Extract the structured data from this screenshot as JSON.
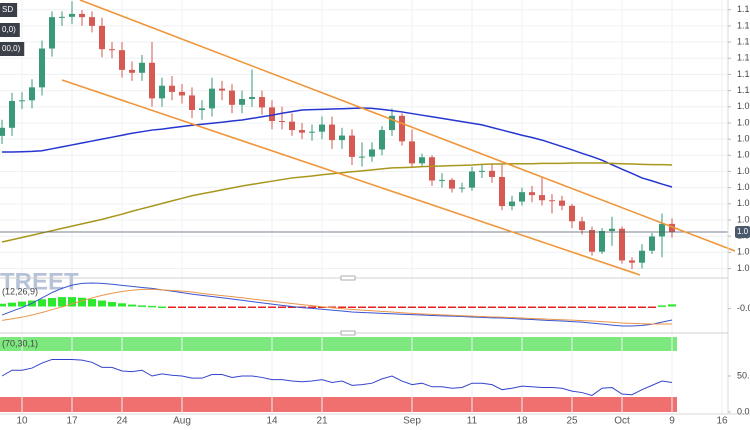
{
  "header": {
    "watermark": "TREET"
  },
  "chart_data": [
    {
      "type": "candlestick",
      "title": "SD",
      "categories": [
        null,
        null,
        "10",
        null,
        null,
        null,
        null,
        "17",
        null,
        null,
        null,
        null,
        "24",
        null,
        null,
        null,
        null,
        null,
        "Aug",
        null,
        null,
        null,
        null,
        null,
        null,
        null,
        null,
        "14",
        null,
        null,
        null,
        null,
        "21",
        null,
        null,
        null,
        null,
        null,
        null,
        null,
        null,
        "Sep",
        null,
        null,
        null,
        null,
        null,
        "11",
        null,
        null,
        null,
        null,
        "18",
        null,
        null,
        null,
        null,
        "25",
        null,
        null,
        null,
        null,
        "Oct",
        null,
        null,
        null,
        null,
        "9",
        null,
        null,
        null,
        null,
        "16"
      ],
      "open": [
        1.086,
        1.0885,
        1.0968,
        1.097,
        1.101,
        1.113,
        1.1227,
        1.1228,
        1.1237,
        1.1227,
        1.12,
        1.1128,
        1.1125,
        1.1064,
        1.1055,
        1.1086,
        1.0976,
        1.1015,
        1.0996,
        1.0985,
        1.094,
        1.0945,
        1.1006,
        1.1,
        1.0956,
        1.0974,
        1.098,
        1.0948,
        1.0906,
        1.0904,
        1.0878,
        1.087,
        1.0873,
        1.0895,
        1.0847,
        1.0861,
        1.0795,
        1.0796,
        1.0818,
        1.0878,
        1.0922,
        1.0843,
        1.0775,
        1.0794,
        1.0722,
        1.0724,
        1.0697,
        1.07,
        1.075,
        1.0752,
        1.0733,
        1.0643,
        1.0657,
        1.0686,
        1.0677,
        1.0661,
        1.066,
        1.0644,
        1.0596,
        1.0569,
        1.0502,
        1.0566,
        1.0573,
        1.0475,
        1.0468,
        1.0505,
        1.0549,
        1.0588,
        null,
        null,
        null,
        null,
        null
      ],
      "high": [
        1.091,
        1.0993,
        1.0995,
        1.1035,
        1.1155,
        1.1245,
        1.1245,
        1.1276,
        1.1249,
        1.1245,
        1.1225,
        1.115,
        1.115,
        1.109,
        1.111,
        1.115,
        1.104,
        1.1045,
        1.102,
        1.101,
        1.097,
        1.104,
        1.103,
        1.102,
        1.1,
        1.1065,
        1.1,
        1.097,
        1.095,
        1.093,
        1.09,
        1.0895,
        1.092,
        1.092,
        1.0885,
        1.088,
        1.084,
        1.084,
        1.089,
        1.0945,
        1.093,
        1.088,
        1.0805,
        1.08,
        1.0745,
        1.073,
        1.0715,
        1.0765,
        1.077,
        1.0775,
        1.077,
        1.0675,
        1.07,
        1.0705,
        1.0735,
        1.068,
        1.0675,
        1.065,
        1.061,
        1.058,
        1.0575,
        1.061,
        1.058,
        1.0485,
        1.0525,
        1.056,
        1.062,
        1.0605,
        null,
        null,
        null,
        null,
        null
      ],
      "low": [
        1.0835,
        1.086,
        1.0943,
        1.0945,
        1.0985,
        1.1105,
        1.12,
        1.1205,
        1.12,
        1.118,
        1.1103,
        1.11,
        1.104,
        1.103,
        1.103,
        1.095,
        1.095,
        1.097,
        1.096,
        1.0915,
        1.091,
        1.092,
        1.097,
        1.093,
        1.093,
        1.095,
        1.0925,
        1.088,
        1.088,
        1.086,
        1.085,
        1.0845,
        1.085,
        1.082,
        1.082,
        1.077,
        1.0765,
        1.078,
        1.08,
        1.086,
        1.083,
        1.0765,
        1.0765,
        1.0705,
        1.07,
        1.0685,
        1.0685,
        1.069,
        1.073,
        1.0715,
        1.063,
        1.063,
        1.0645,
        1.0655,
        1.0645,
        1.062,
        1.063,
        1.0575,
        1.0555,
        1.049,
        1.0495,
        1.052,
        1.0465,
        1.0448,
        1.045,
        1.0495,
        1.0485,
        1.0545,
        null,
        null,
        null,
        null,
        null
      ],
      "close": [
        1.0885,
        1.0968,
        1.097,
        1.101,
        1.113,
        1.1227,
        1.1228,
        1.1237,
        1.1227,
        1.12,
        1.1128,
        1.1125,
        1.1064,
        1.1055,
        1.1086,
        1.0976,
        1.1015,
        1.0996,
        1.0985,
        1.094,
        1.0945,
        1.1006,
        1.1,
        1.0956,
        1.0974,
        1.098,
        1.0948,
        1.0906,
        1.0904,
        1.0878,
        1.087,
        1.0873,
        1.0895,
        1.0847,
        1.0861,
        1.0795,
        1.0796,
        1.0818,
        1.0878,
        1.0922,
        1.0843,
        1.0775,
        1.0794,
        1.0722,
        1.0724,
        1.0697,
        1.07,
        1.075,
        1.0752,
        1.0733,
        1.0643,
        1.0657,
        1.0686,
        1.0677,
        1.0661,
        1.066,
        1.0644,
        1.0596,
        1.0569,
        1.0502,
        1.0566,
        1.0573,
        1.0475,
        1.0468,
        1.0505,
        1.0549,
        1.0588,
        1.0563,
        null,
        null,
        null,
        null,
        null
      ],
      "up_color": "#3a9a78",
      "down_color": "#d65a52",
      "series": [
        {
          "name": "0,0)",
          "color": "#2536d0",
          "values": [
            1.081,
            1.081,
            1.0811,
            1.0812,
            1.0814,
            1.082,
            1.0826,
            1.0832,
            1.0838,
            1.0844,
            1.085,
            1.0856,
            1.0862,
            1.0868,
            1.0873,
            1.0878,
            1.0881,
            1.0885,
            1.0889,
            1.0893,
            1.0896,
            1.0899,
            1.0902,
            1.0906,
            1.0909,
            1.0914,
            1.0919,
            1.0924,
            1.093,
            1.0935,
            1.094,
            1.0941,
            1.0942,
            1.0943,
            1.0944,
            1.0945,
            1.0946,
            1.0945,
            1.0942,
            1.0938,
            1.0934,
            1.0929,
            1.0924,
            1.0919,
            1.0914,
            1.0909,
            1.0904,
            1.0899,
            1.0894,
            1.0886,
            1.0878,
            1.087,
            1.0862,
            1.0855,
            1.0847,
            1.0837,
            1.0827,
            1.0817,
            1.0806,
            1.0796,
            1.0785,
            1.0771,
            1.0757,
            1.0744,
            1.073,
            1.0721,
            1.0711,
            1.0702,
            null,
            null,
            null,
            null,
            null
          ]
        },
        {
          "name": "00,0)",
          "color": "#a8971c",
          "values": [
            1.0532,
            1.0539,
            1.0546,
            1.0553,
            1.056,
            1.0567,
            1.0574,
            1.0581,
            1.0588,
            1.0595,
            1.0602,
            1.061,
            1.0618,
            1.0627,
            1.0635,
            1.0643,
            1.0651,
            1.0659,
            1.0667,
            1.0675,
            1.0681,
            1.0687,
            1.0693,
            1.0699,
            1.0705,
            1.071,
            1.0715,
            1.072,
            1.0725,
            1.073,
            1.0733,
            1.0736,
            1.074,
            1.0743,
            1.0746,
            1.0749,
            1.0752,
            1.0755,
            1.0758,
            1.0761,
            1.0762,
            1.0763,
            1.0765,
            1.0766,
            1.0767,
            1.0768,
            1.0769,
            1.077,
            1.0772,
            1.0773,
            1.0773,
            1.0774,
            1.0774,
            1.0774,
            1.0775,
            1.0775,
            1.0775,
            1.0776,
            1.0776,
            1.0776,
            1.0776,
            1.0775,
            1.0774,
            1.0773,
            1.0772,
            1.0771,
            1.0771,
            1.077,
            null,
            null,
            null,
            null,
            null
          ]
        }
      ],
      "ylim": [
        1.043,
        1.128
      ],
      "yticks": [
        {
          "value": 1.045,
          "label": "1.0"
        },
        {
          "value": 1.05,
          "label": "1.0"
        },
        {
          "value": 1.055,
          "label": "1.0"
        },
        {
          "value": 1.06,
          "label": "1.0"
        },
        {
          "value": 1.065,
          "label": "1.0"
        },
        {
          "value": 1.07,
          "label": "1.0"
        },
        {
          "value": 1.075,
          "label": "1.0"
        },
        {
          "value": 1.08,
          "label": "1.0"
        },
        {
          "value": 1.085,
          "label": "1.0"
        },
        {
          "value": 1.09,
          "label": "1.0"
        },
        {
          "value": 1.095,
          "label": "1.0"
        },
        {
          "value": 1.1,
          "label": "1.1"
        },
        {
          "value": 1.105,
          "label": "1.1"
        },
        {
          "value": 1.11,
          "label": "1.1"
        },
        {
          "value": 1.115,
          "label": "1.1"
        },
        {
          "value": 1.12,
          "label": "1.1"
        },
        {
          "value": 1.125,
          "label": "1.1"
        }
      ],
      "price_line": {
        "value": 1.0563,
        "label": "1.0"
      },
      "grid": true
    },
    {
      "type": "macd",
      "title": "(12,26,9)",
      "ylim": [
        -0.011,
        0.011
      ],
      "yticks": [
        {
          "value": -0.001,
          "label": "-0.0"
        }
      ],
      "up_color": "#2ee82e",
      "down_color": "#e82020",
      "histogram": [
        0.0013,
        0.0018,
        0.0023,
        0.0028,
        0.0034,
        0.004,
        0.0044,
        0.0044,
        0.0041,
        0.0035,
        0.0028,
        0.0021,
        0.0015,
        0.0009,
        0.0005,
        0.0003,
        0,
        -0.0002,
        -0.0004,
        -0.0005,
        -0.0005,
        -0.0005,
        -0.0005,
        -0.0006,
        -0.0006,
        -0.0006,
        -0.0007,
        -0.0007,
        -0.0007,
        -0.0007,
        -0.0007,
        -0.0007,
        -0.0006,
        -0.0006,
        -0.0006,
        -0.0006,
        -0.0006,
        -0.0005,
        -0.0005,
        -0.0004,
        -0.0004,
        -0.0003,
        -0.0003,
        -0.0003,
        -0.0003,
        -0.0002,
        -0.0002,
        -0.0002,
        -0.0002,
        -0.0002,
        -0.0002,
        -0.0002,
        -0.0003,
        -0.0003,
        -0.0003,
        -0.0003,
        -0.0003,
        -0.0004,
        -0.0004,
        -0.0005,
        -0.0006,
        -0.0007,
        -0.0007,
        -0.0006,
        -0.0004,
        -0.0001,
        0.0005,
        0.001,
        null,
        null,
        null,
        null,
        null
      ],
      "series": [
        {
          "color": "#3a55d0",
          "values": [
            -0.004,
            -0.0022,
            -0.0005,
            0.0015,
            0.004,
            0.0065,
            0.0085,
            0.01,
            0.0108,
            0.011,
            0.0108,
            0.0104,
            0.0099,
            0.0094,
            0.0089,
            0.0085,
            0.0078,
            0.0072,
            0.0065,
            0.0058,
            0.0052,
            0.0047,
            0.0041,
            0.0035,
            0.0029,
            0.0023,
            0.0017,
            0.0011,
            0.0005,
            0.0,
            -0.0005,
            -0.0009,
            -0.0013,
            -0.0017,
            -0.0021,
            -0.0026,
            -0.0028,
            -0.003,
            -0.0032,
            -0.0034,
            -0.0036,
            -0.0038,
            -0.004,
            -0.0042,
            -0.0044,
            -0.0045,
            -0.0047,
            -0.0049,
            -0.0051,
            -0.0053,
            -0.0054,
            -0.0056,
            -0.0059,
            -0.0061,
            -0.0064,
            -0.0066,
            -0.0068,
            -0.0071,
            -0.0073,
            -0.0078,
            -0.0082,
            -0.0087,
            -0.0091,
            -0.0091,
            -0.0089,
            -0.0083,
            -0.0073,
            -0.0063,
            null,
            null,
            null,
            null,
            null
          ]
        },
        {
          "color": "#e8954a",
          "values": [
            -0.0065,
            -0.0058,
            -0.005,
            -0.004,
            -0.0028,
            -0.0015,
            -0.0002,
            0.0012,
            0.0027,
            0.004,
            0.0052,
            0.0062,
            0.007,
            0.0076,
            0.008,
            0.008,
            0.0078,
            0.0075,
            0.0072,
            0.0068,
            0.0061,
            0.0056,
            0.0051,
            0.0046,
            0.0041,
            0.0035,
            0.003,
            0.0025,
            0.0019,
            0.0014,
            0.0009,
            0.0004,
            -0.0001,
            -0.0006,
            -0.001,
            -0.0014,
            -0.0017,
            -0.002,
            -0.0023,
            -0.0026,
            -0.0029,
            -0.0032,
            -0.0035,
            -0.0037,
            -0.0039,
            -0.0041,
            -0.0043,
            -0.0045,
            -0.0047,
            -0.0049,
            -0.005,
            -0.0052,
            -0.0054,
            -0.0056,
            -0.0058,
            -0.006,
            -0.0062,
            -0.0064,
            -0.0066,
            -0.0068,
            -0.0071,
            -0.0074,
            -0.0077,
            -0.0079,
            -0.0081,
            -0.0082,
            -0.0082,
            -0.0082,
            null,
            null,
            null,
            null,
            null
          ]
        }
      ]
    },
    {
      "type": "rsi",
      "title": "(70,30,1)",
      "ylim": [
        0,
        100
      ],
      "yticks": [
        {
          "value": 50,
          "label": "50."
        },
        {
          "value": 0,
          "label": "0.0"
        }
      ],
      "series": [
        {
          "color": "#3344cc",
          "values": [
            50,
            58,
            58,
            61,
            68,
            73,
            73,
            73,
            72,
            69,
            62,
            62,
            57,
            56,
            58,
            50,
            53,
            51,
            50,
            47,
            47,
            52,
            52,
            48,
            50,
            50,
            48,
            45,
            45,
            43,
            42,
            43,
            45,
            41,
            43,
            37,
            38,
            40,
            46,
            50,
            43,
            38,
            40,
            35,
            35,
            33,
            34,
            40,
            40,
            38,
            31,
            33,
            36,
            35,
            34,
            34,
            33,
            29,
            27,
            23,
            33,
            34,
            25,
            24,
            31,
            37,
            43,
            41,
            null,
            null,
            null,
            null,
            null
          ]
        }
      ]
    }
  ]
}
